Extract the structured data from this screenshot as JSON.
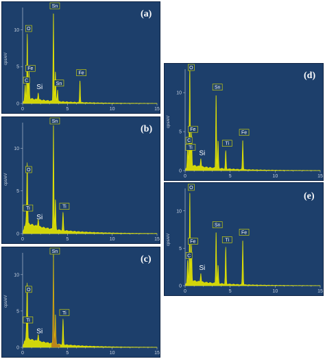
{
  "chart_data": [
    {
      "type": "line",
      "label": "(a)",
      "ylabel": "cps/eV",
      "xlim": [
        0,
        15
      ],
      "ylim": [
        0,
        13
      ],
      "xticks": [
        "0",
        "5",
        "10",
        "15"
      ],
      "yticks": [
        "0",
        "5",
        "10"
      ],
      "spectrum_color": "#e6e600",
      "peaks": [
        {
          "x": 0.28,
          "y": 2.0,
          "label": "C"
        },
        {
          "x": 0.52,
          "y": 9.0,
          "label": "O"
        },
        {
          "x": 0.71,
          "y": 3.6,
          "label": "Fe"
        },
        {
          "x": 1.74,
          "y": 1.0,
          "label": "Si"
        },
        {
          "x": 3.44,
          "y": 12.2,
          "label": "Sn"
        },
        {
          "x": 3.66,
          "y": 4.0,
          "label": ""
        },
        {
          "x": 3.9,
          "y": 1.6,
          "label": "Sn"
        },
        {
          "x": 6.4,
          "y": 3.0,
          "label": "Fe"
        }
      ]
    },
    {
      "type": "line",
      "label": "(b)",
      "ylabel": "cps/eV",
      "xlim": [
        0,
        15
      ],
      "ylim": [
        0,
        13
      ],
      "xticks": [
        "0",
        "5",
        "10",
        "15"
      ],
      "yticks": [
        "0",
        "5",
        "10"
      ],
      "spectrum_color": "#e6e600",
      "peaks": [
        {
          "x": 0.45,
          "y": 2.0,
          "label": "Ti"
        },
        {
          "x": 0.52,
          "y": 6.5,
          "label": "O"
        },
        {
          "x": 1.74,
          "y": 0.9,
          "label": "Si"
        },
        {
          "x": 3.44,
          "y": 12.5,
          "label": "Sn"
        },
        {
          "x": 3.66,
          "y": 3.5,
          "label": ""
        },
        {
          "x": 4.51,
          "y": 2.2,
          "label": "Ti"
        }
      ]
    },
    {
      "type": "line",
      "label": "(c)",
      "ylabel": "cps/eV",
      "xlim": [
        0,
        15
      ],
      "ylim": [
        0,
        13
      ],
      "xticks": [
        "0",
        "5",
        "10",
        "15"
      ],
      "yticks": [
        "0",
        "5",
        "10"
      ],
      "spectrum_color": "#e6e600",
      "highlight_color": "#b8781e",
      "peaks": [
        {
          "x": 0.45,
          "y": 2.6,
          "label": "Ti"
        },
        {
          "x": 0.52,
          "y": 6.8,
          "label": "O"
        },
        {
          "x": 1.74,
          "y": 1.0,
          "label": "Si"
        },
        {
          "x": 3.44,
          "y": 12.6,
          "label": "Sn"
        },
        {
          "x": 3.66,
          "y": 4.0,
          "label": ""
        },
        {
          "x": 4.51,
          "y": 3.6,
          "label": "Ti"
        }
      ]
    },
    {
      "type": "line",
      "label": "(d)",
      "ylabel": "cps/eV",
      "xlim": [
        0,
        15
      ],
      "ylim": [
        0,
        13
      ],
      "xticks": [
        "0",
        "5",
        "10",
        "15"
      ],
      "yticks": [
        "0",
        "5",
        "10"
      ],
      "spectrum_color": "#e6e600",
      "peaks": [
        {
          "x": 0.28,
          "y": 2.8,
          "label": "C"
        },
        {
          "x": 0.45,
          "y": 1.9,
          "label": "Ti"
        },
        {
          "x": 0.52,
          "y": 12.5,
          "label": "O"
        },
        {
          "x": 0.71,
          "y": 4.2,
          "label": "Fe"
        },
        {
          "x": 1.74,
          "y": 1.1,
          "label": "Si"
        },
        {
          "x": 3.44,
          "y": 9.6,
          "label": "Sn"
        },
        {
          "x": 3.66,
          "y": 3.5,
          "label": ""
        },
        {
          "x": 4.51,
          "y": 2.4,
          "label": "Ti"
        },
        {
          "x": 6.4,
          "y": 3.8,
          "label": "Fe"
        }
      ]
    },
    {
      "type": "line",
      "label": "(e)",
      "ylabel": "cps/eV",
      "xlim": [
        0,
        15
      ],
      "ylim": [
        0,
        13
      ],
      "xticks": [
        "0",
        "5",
        "10",
        "15"
      ],
      "yticks": [
        "0",
        "5",
        "10"
      ],
      "spectrum_color": "#e6e600",
      "peaks": [
        {
          "x": 0.28,
          "y": 2.9,
          "label": "C"
        },
        {
          "x": 0.52,
          "y": 12.0,
          "label": "O"
        },
        {
          "x": 0.71,
          "y": 4.8,
          "label": "Fe"
        },
        {
          "x": 1.74,
          "y": 1.2,
          "label": "Si"
        },
        {
          "x": 3.44,
          "y": 7.0,
          "label": "Sn"
        },
        {
          "x": 3.66,
          "y": 2.4,
          "label": ""
        },
        {
          "x": 4.51,
          "y": 5.0,
          "label": "Ti"
        },
        {
          "x": 6.4,
          "y": 6.0,
          "label": "Fe"
        }
      ]
    }
  ]
}
